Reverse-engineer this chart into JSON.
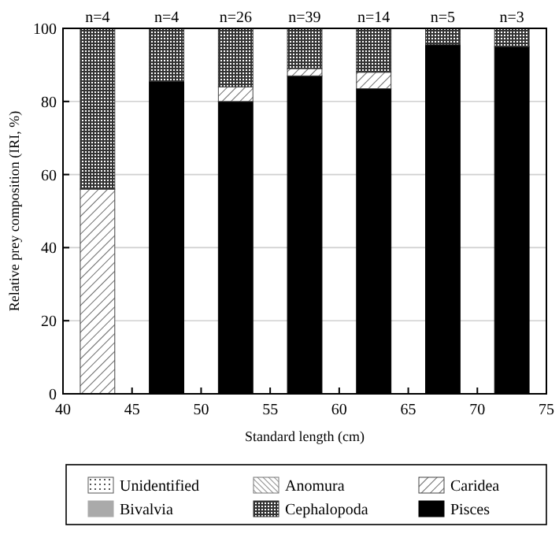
{
  "chart_data": {
    "type": "bar",
    "stacked": true,
    "xlabel": "Standard length (cm)",
    "ylabel": "Relative prey composition (IRI, %)",
    "x": [
      42.5,
      47.5,
      52.5,
      57.5,
      62.5,
      67.5,
      72.5
    ],
    "series": [
      {
        "name": "Pisces",
        "color": "#000000",
        "values": [
          0,
          85.5,
          80,
          87,
          83.5,
          95.5,
          95
        ]
      },
      {
        "name": "Bivalvia",
        "color": "#aaaaaa",
        "values": [
          0,
          0,
          0,
          0,
          0,
          0,
          0
        ]
      },
      {
        "name": "Caridea",
        "color": "#444444",
        "values": [
          56,
          0,
          4,
          2,
          4.5,
          0,
          0
        ]
      },
      {
        "name": "Anomura",
        "color": "#777777",
        "values": [
          0,
          0,
          0,
          0,
          0,
          0,
          0
        ]
      },
      {
        "name": "Cephalopoda",
        "color": "#333333",
        "values": [
          44,
          14.5,
          16,
          11,
          12,
          4.5,
          5
        ]
      },
      {
        "name": "Unidentified",
        "color": "#555555",
        "values": [
          0,
          0,
          0,
          0,
          0,
          0,
          0
        ]
      }
    ],
    "annotations": [
      {
        "text": "n=4",
        "x": 42.5,
        "y": 100
      },
      {
        "text": "n=4",
        "x": 47.5,
        "y": 100
      },
      {
        "text": "n=26",
        "x": 52.5,
        "y": 100
      },
      {
        "text": "n=39",
        "x": 57.5,
        "y": 100
      },
      {
        "text": "n=14",
        "x": 62.5,
        "y": 100
      },
      {
        "text": "n=5",
        "x": 67.5,
        "y": 100
      },
      {
        "text": "n=3",
        "x": 72.5,
        "y": 100
      }
    ],
    "xlim": [
      40,
      75
    ],
    "xticks": [
      40,
      45,
      50,
      55,
      60,
      65,
      70,
      75
    ],
    "ylim": [
      0,
      100
    ],
    "yticks": [
      0,
      20,
      40,
      60,
      80,
      100
    ],
    "grid": "y",
    "legend": "bottom"
  }
}
